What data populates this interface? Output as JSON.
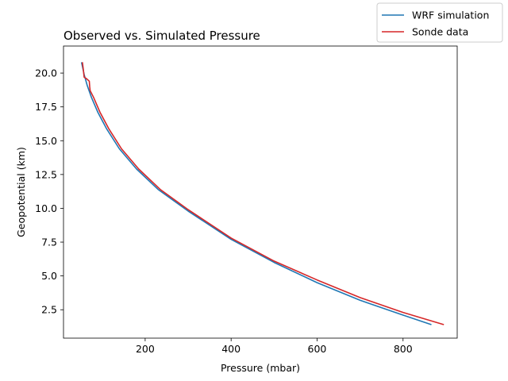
{
  "chart_data": {
    "type": "line",
    "title": "Observed vs. Simulated Pressure",
    "xlabel": "Pressure (mbar)",
    "ylabel": "Geopotential (km)",
    "xlim": [
      10,
      926
    ],
    "ylim": [
      0.4,
      22.0
    ],
    "xticks": [
      200,
      400,
      600,
      800
    ],
    "yticks": [
      2.5,
      5.0,
      7.5,
      10.0,
      12.5,
      15.0,
      17.5,
      20.0
    ],
    "grid": false,
    "legend_placement": "top-right",
    "series": [
      {
        "name": "WRF simulation",
        "color": "#1f77b4",
        "x": [
          52,
          58,
          65,
          75,
          90,
          110,
          140,
          180,
          230,
          300,
          400,
          500,
          600,
          700,
          800,
          866
        ],
        "y": [
          20.8,
          19.9,
          19.1,
          18.2,
          17.1,
          15.9,
          14.4,
          12.9,
          11.4,
          9.8,
          7.7,
          6.0,
          4.5,
          3.2,
          2.1,
          1.4
        ]
      },
      {
        "name": "Sonde data",
        "color": "#d62728",
        "x": [
          54,
          56,
          58,
          63,
          70,
          71,
          72,
          80,
          95,
          115,
          145,
          185,
          235,
          300,
          400,
          500,
          600,
          700,
          800,
          895
        ],
        "y": [
          20.8,
          20.3,
          19.7,
          19.6,
          19.4,
          19.0,
          18.7,
          18.2,
          17.1,
          15.9,
          14.4,
          12.9,
          11.4,
          9.9,
          7.8,
          6.1,
          4.7,
          3.4,
          2.3,
          1.4
        ]
      }
    ]
  }
}
